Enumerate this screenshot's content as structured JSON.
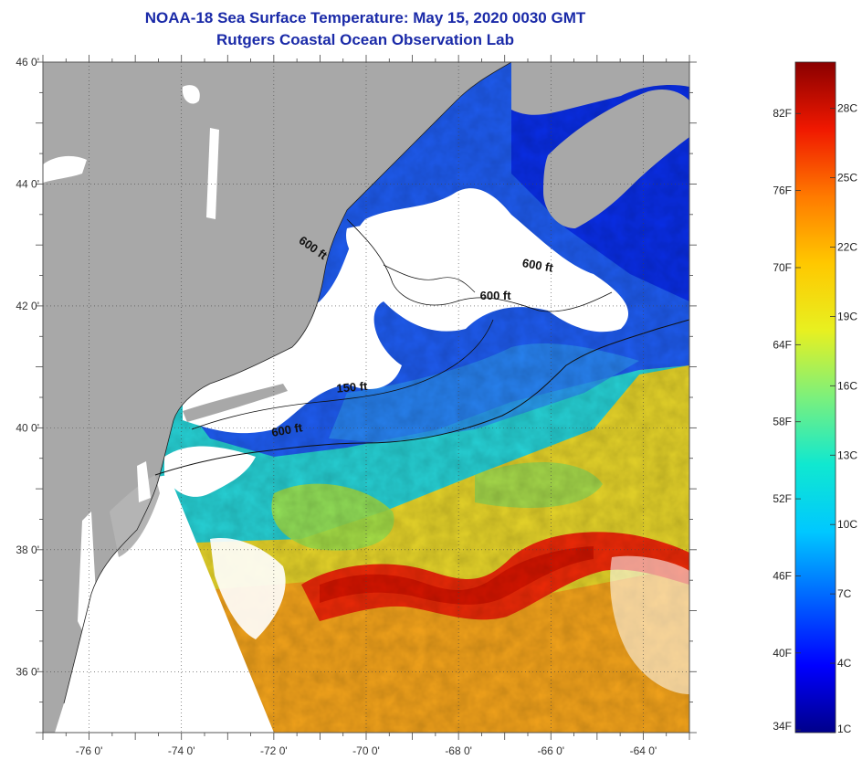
{
  "title": {
    "line1": "NOAA-18 Sea Surface Temperature:  May 15, 2020 0030 GMT",
    "line2": "Rutgers Coastal Ocean Observation Lab"
  },
  "map": {
    "lat_labels": [
      "46 0'",
      "44 0'",
      "42 0'",
      "40 0'",
      "38 0'",
      "36 0'"
    ],
    "lat_values": [
      46,
      44,
      42,
      40,
      38,
      36
    ],
    "lon_labels": [
      "-76 0'",
      "-74 0'",
      "-72 0'",
      "-70 0'",
      "-68 0'",
      "-66 0'",
      "-64 0'"
    ],
    "lon_values": [
      -76,
      -74,
      -72,
      -70,
      -68,
      -66,
      -64
    ],
    "lat_range": [
      35,
      46
    ],
    "lon_range": [
      -77,
      -63
    ],
    "contour_labels": [
      {
        "text": "600 ft",
        "lon": -71.2,
        "lat": 42.9,
        "angle": 35
      },
      {
        "text": "600 ft",
        "lon": -66.3,
        "lat": 42.6,
        "angle": 10
      },
      {
        "text": "600 ft",
        "lon": -67.2,
        "lat": 42.1,
        "angle": 0
      },
      {
        "text": "150 ft",
        "lon": -70.3,
        "lat": 40.6,
        "angle": -5
      },
      {
        "text": "600 ft",
        "lon": -71.7,
        "lat": 39.9,
        "angle": -10
      }
    ]
  },
  "colorbar": {
    "fahrenheit_labels": [
      "82F",
      "76F",
      "70F",
      "64F",
      "58F",
      "52F",
      "46F",
      "40F",
      "34F"
    ],
    "celsius_labels": [
      "28C",
      "25C",
      "22C",
      "19C",
      "16C",
      "13C",
      "10C",
      "7C",
      "4C",
      "1C"
    ],
    "celsius_min": 1,
    "celsius_max": 30,
    "colors": [
      "#00008a",
      "#0000ff",
      "#0064ff",
      "#00c8ff",
      "#10e8d0",
      "#7cf07c",
      "#e8f020",
      "#ffc800",
      "#ff7a00",
      "#f01800",
      "#8a0000"
    ]
  },
  "colors": {
    "land": "#a8a8a8",
    "cloud": "#ffffff",
    "title": "#1a2aa8"
  }
}
